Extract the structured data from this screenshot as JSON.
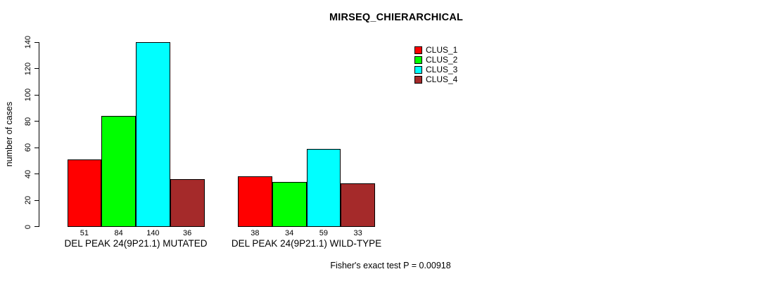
{
  "title": "MIRSEQ_CHIERARCHICAL",
  "footer_annotation": "Fisher's exact test P = 0.00918",
  "colors": {
    "clus_1": "#FF0000",
    "clus_2": "#00FF00",
    "clus_3": "#00FFFF",
    "clus_4": "#A52A2A",
    "axis": "#000000",
    "background": "#FFFFFF"
  },
  "chart_data": {
    "type": "bar",
    "title": "MIRSEQ_CHIERARCHICAL",
    "xlabel": "",
    "ylabel": "number of cases",
    "ylim": [
      0,
      140
    ],
    "yticks": [
      0,
      20,
      40,
      60,
      80,
      100,
      120,
      140
    ],
    "ytick_label_rotation": 90,
    "grid": false,
    "legend_position": "top-right",
    "categories": [
      "DEL PEAK 24(9P21.1) MUTATED",
      "DEL PEAK 24(9P21.1) WILD-TYPE"
    ],
    "series": [
      {
        "name": "CLUS_1",
        "color": "#FF0000",
        "values": [
          51,
          38
        ]
      },
      {
        "name": "CLUS_2",
        "color": "#00FF00",
        "values": [
          84,
          34
        ]
      },
      {
        "name": "CLUS_3",
        "color": "#00FFFF",
        "values": [
          140,
          59
        ]
      },
      {
        "name": "CLUS_4",
        "color": "#A52A2A",
        "values": [
          36,
          33
        ]
      }
    ],
    "bar_value_labels": [
      [
        51,
        84,
        140,
        36
      ],
      [
        38,
        34,
        59,
        33
      ]
    ],
    "annotation": "Fisher's exact test P = 0.00918"
  }
}
